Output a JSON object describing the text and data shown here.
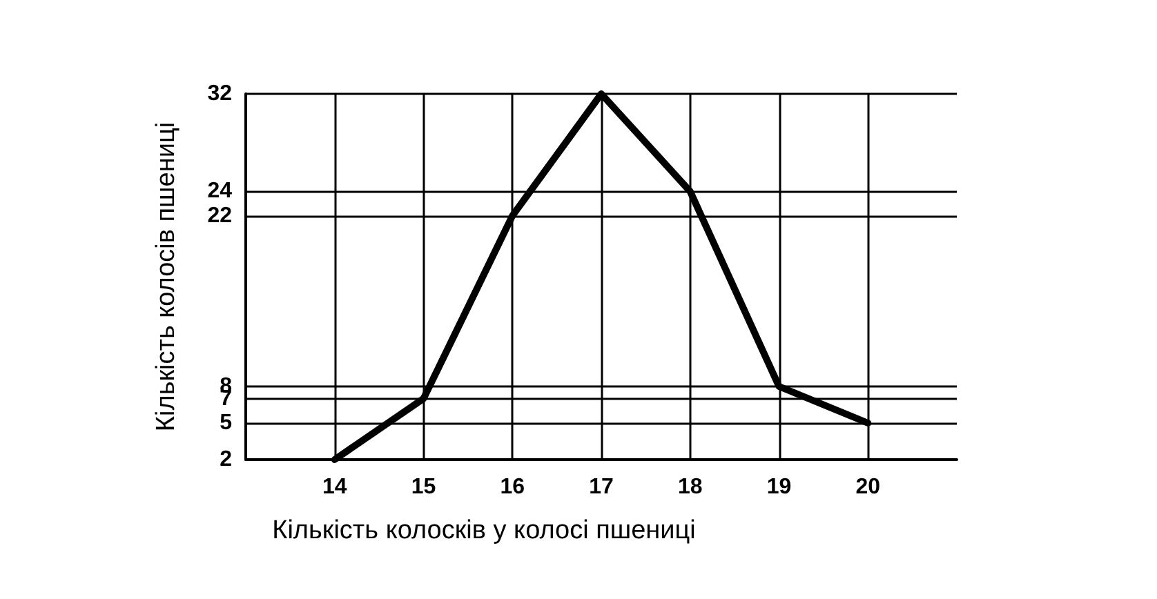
{
  "chart_data": {
    "type": "line",
    "xlabel": "Кількість колосків у колосі пшениці",
    "ylabel": "Кількість колосів пшениці",
    "x": [
      14,
      15,
      16,
      17,
      18,
      19,
      20
    ],
    "series": [
      {
        "color": "#000000",
        "values": [
          2,
          7,
          22,
          32,
          24,
          8,
          5
        ]
      }
    ],
    "xlim": [
      13,
      21
    ],
    "xticks": [
      14,
      15,
      16,
      17,
      18,
      19,
      20
    ],
    "ylim": [
      2,
      32
    ],
    "yticks": [
      2,
      5,
      7,
      8,
      22,
      24,
      32
    ],
    "grid": true,
    "marker": "none",
    "line_style": "solid"
  }
}
